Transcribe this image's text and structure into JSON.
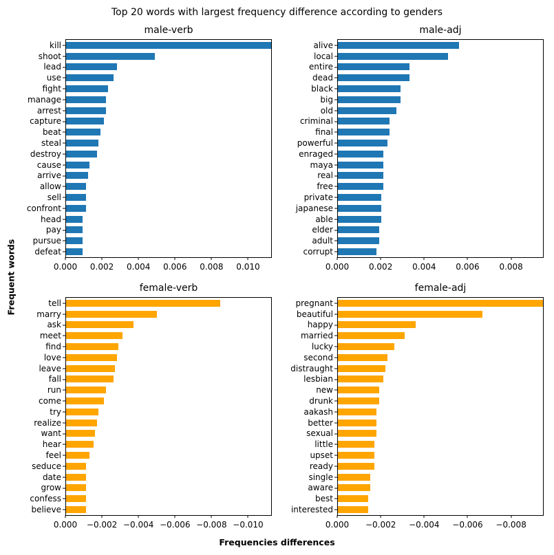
{
  "figure": {
    "suptitle": "Top 20 words with largest frequency difference according to genders",
    "xlabel": "Frequencies differences",
    "ylabel": "Frequent words"
  },
  "colors": {
    "male": "#1f77b4",
    "female": "#ffa500"
  },
  "chart_data": [
    {
      "id": "male-verb",
      "type": "bar",
      "orientation": "horizontal",
      "title": "male-verb",
      "color_key": "male",
      "xlim": [
        0,
        0.0113
      ],
      "grid": false,
      "legend": null,
      "categories": [
        "kill",
        "shoot",
        "lead",
        "use",
        "fight",
        "manage",
        "arrest",
        "capture",
        "beat",
        "steal",
        "destroy",
        "cause",
        "arrive",
        "allow",
        "sell",
        "confront",
        "head",
        "pay",
        "pursue",
        "defeat"
      ],
      "values": [
        0.0113,
        0.0049,
        0.0028,
        0.0026,
        0.0023,
        0.0022,
        0.0022,
        0.0021,
        0.0019,
        0.0018,
        0.0017,
        0.0013,
        0.0012,
        0.0011,
        0.0011,
        0.0011,
        0.0009,
        0.0009,
        0.0009,
        0.0009
      ],
      "xticks": [
        {
          "label": "0.000",
          "value": 0.0
        },
        {
          "label": "0.002",
          "value": 0.002
        },
        {
          "label": "0.004",
          "value": 0.004
        },
        {
          "label": "0.006",
          "value": 0.006
        },
        {
          "label": "0.008",
          "value": 0.008
        },
        {
          "label": "0.010",
          "value": 0.01
        }
      ]
    },
    {
      "id": "male-adj",
      "type": "bar",
      "orientation": "horizontal",
      "title": "male-adj",
      "color_key": "male",
      "xlim": [
        0,
        0.0095
      ],
      "grid": false,
      "legend": null,
      "categories": [
        "alive",
        "local",
        "entire",
        "dead",
        "black",
        "big",
        "old",
        "criminal",
        "final",
        "powerful",
        "enraged",
        "maya",
        "real",
        "free",
        "private",
        "japanese",
        "able",
        "elder",
        "adult",
        "corrupt"
      ],
      "values": [
        0.0056,
        0.0051,
        0.0033,
        0.0033,
        0.0029,
        0.0029,
        0.0027,
        0.0024,
        0.0024,
        0.0023,
        0.0021,
        0.0021,
        0.0021,
        0.0021,
        0.002,
        0.002,
        0.002,
        0.0019,
        0.0019,
        0.0018
      ],
      "xticks": [
        {
          "label": "0.000",
          "value": 0.0
        },
        {
          "label": "0.002",
          "value": 0.002
        },
        {
          "label": "0.004",
          "value": 0.004
        },
        {
          "label": "0.006",
          "value": 0.006
        },
        {
          "label": "0.008",
          "value": 0.008
        }
      ]
    },
    {
      "id": "female-verb",
      "type": "bar",
      "orientation": "horizontal",
      "title": "female-verb",
      "color_key": "female",
      "xlim": [
        0,
        -0.0113
      ],
      "grid": false,
      "legend": null,
      "categories": [
        "tell",
        "marry",
        "ask",
        "meet",
        "find",
        "love",
        "leave",
        "fall",
        "run",
        "come",
        "try",
        "realize",
        "want",
        "hear",
        "feel",
        "seduce",
        "date",
        "grow",
        "confess",
        "believe"
      ],
      "values": [
        -0.0085,
        -0.005,
        -0.0037,
        -0.0031,
        -0.0029,
        -0.0028,
        -0.0027,
        -0.0026,
        -0.0022,
        -0.0021,
        -0.0018,
        -0.0017,
        -0.0016,
        -0.0015,
        -0.0013,
        -0.0011,
        -0.0011,
        -0.0011,
        -0.0011,
        -0.0011
      ],
      "xticks": [
        {
          "label": "0.000",
          "value": 0.0
        },
        {
          "label": "−0.002",
          "value": 0.002
        },
        {
          "label": "−0.004",
          "value": 0.004
        },
        {
          "label": "−0.006",
          "value": 0.006
        },
        {
          "label": "−0.008",
          "value": 0.008
        },
        {
          "label": "−0.010",
          "value": 0.01
        }
      ]
    },
    {
      "id": "female-adj",
      "type": "bar",
      "orientation": "horizontal",
      "title": "female-adj",
      "color_key": "female",
      "xlim": [
        0,
        -0.0095
      ],
      "grid": false,
      "legend": null,
      "categories": [
        "pregnant",
        "beautiful",
        "happy",
        "married",
        "lucky",
        "second",
        "distraught",
        "lesbian",
        "new",
        "drunk",
        "aakash",
        "better",
        "sexual",
        "little",
        "upset",
        "ready",
        "single",
        "aware",
        "best",
        "interested"
      ],
      "values": [
        -0.0095,
        -0.0067,
        -0.0036,
        -0.0031,
        -0.0026,
        -0.0023,
        -0.0022,
        -0.0021,
        -0.0019,
        -0.0019,
        -0.0018,
        -0.0018,
        -0.0018,
        -0.0017,
        -0.0017,
        -0.0017,
        -0.0015,
        -0.0015,
        -0.0014,
        -0.0014
      ],
      "xticks": [
        {
          "label": "0.000",
          "value": 0.0
        },
        {
          "label": "−0.002",
          "value": 0.002
        },
        {
          "label": "−0.004",
          "value": 0.004
        },
        {
          "label": "−0.006",
          "value": 0.006
        },
        {
          "label": "−0.008",
          "value": 0.008
        }
      ]
    }
  ]
}
